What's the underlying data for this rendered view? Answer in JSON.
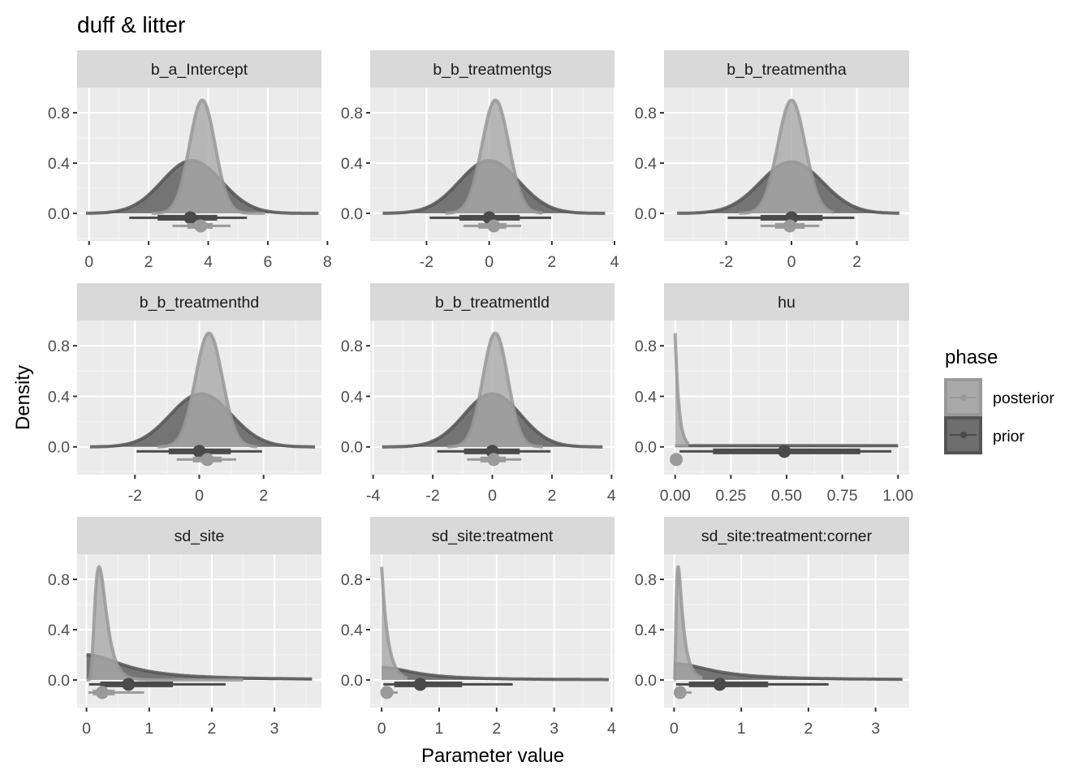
{
  "chart_data": {
    "type": "area",
    "title": "duff & litter",
    "xlabel": "Parameter value",
    "ylabel": "Density",
    "ylim": [
      -0.22,
      1.0
    ],
    "yticks": [
      0.0,
      0.4,
      0.8
    ],
    "ytick_labels": [
      "0.0",
      "0.4",
      "0.8"
    ],
    "grid": true,
    "legend": {
      "title": "phase",
      "placement": "right",
      "entries": [
        {
          "label": "posterior",
          "color": "#a9a9a9",
          "edge": "#999999"
        },
        {
          "label": "prior",
          "color": "#6e6e6e",
          "edge": "#555555"
        }
      ]
    },
    "colors": {
      "posterior_fill": "#a9a9a9",
      "posterior_line": "#999999",
      "prior_fill": "#6e6e6e",
      "prior_line": "#555555",
      "prior_interval": "#4a4a4a",
      "posterior_interval": "#9a9a9a",
      "panel_bg": "#ebebeb",
      "strip_bg": "#d9d9d9"
    },
    "panels": [
      {
        "label": "b_a_Intercept",
        "xlim": [
          -0.4,
          7.8
        ],
        "xticks": [
          0,
          2,
          4,
          6,
          8
        ],
        "xtick_labels": [
          "0",
          "2",
          "4",
          "6",
          "8"
        ],
        "prior": {
          "kind": "normal",
          "mean": 3.45,
          "sd": 1.0,
          "range": [
            -0.1,
            7.7
          ],
          "peak": 0.42
        },
        "posterior": {
          "kind": "normal",
          "mean": 3.8,
          "sd": 0.43,
          "range": [
            2.1,
            5.9
          ],
          "peak": 0.9
        },
        "prior_interval": {
          "point": 3.4,
          "inner": [
            2.3,
            4.3
          ],
          "outer": [
            1.35,
            5.3
          ]
        },
        "posterior_interval": {
          "point": 3.75,
          "inner": [
            3.3,
            4.15
          ],
          "outer": [
            2.8,
            4.75
          ]
        }
      },
      {
        "label": "b_b_treatmentgs",
        "xlim": [
          -3.8,
          4.0
        ],
        "xticks": [
          -2,
          0,
          2,
          4
        ],
        "xtick_labels": [
          "-2",
          "0",
          "2",
          "4"
        ],
        "prior": {
          "kind": "normal",
          "mean": 0.0,
          "sd": 0.95,
          "range": [
            -3.4,
            3.7
          ],
          "peak": 0.42
        },
        "posterior": {
          "kind": "normal",
          "mean": 0.2,
          "sd": 0.43,
          "range": [
            -1.4,
            1.7
          ],
          "peak": 0.9
        },
        "prior_interval": {
          "point": 0.0,
          "inner": [
            -0.95,
            0.98
          ],
          "outer": [
            -1.9,
            1.98
          ]
        },
        "posterior_interval": {
          "point": 0.15,
          "inner": [
            -0.35,
            0.55
          ],
          "outer": [
            -0.82,
            1.02
          ]
        }
      },
      {
        "label": "b_b_treatmentha",
        "xlim": [
          -3.9,
          3.6
        ],
        "xticks": [
          -2,
          0,
          2
        ],
        "xtick_labels": [
          "-2",
          "0",
          "2"
        ],
        "prior": {
          "kind": "normal",
          "mean": 0.0,
          "sd": 0.95,
          "range": [
            -3.5,
            3.3
          ],
          "peak": 0.41
        },
        "posterior": {
          "kind": "normal",
          "mean": 0.0,
          "sd": 0.42,
          "range": [
            -1.6,
            1.3
          ],
          "peak": 0.9
        },
        "prior_interval": {
          "point": 0.0,
          "inner": [
            -0.95,
            0.95
          ],
          "outer": [
            -1.95,
            1.92
          ]
        },
        "posterior_interval": {
          "point": -0.05,
          "inner": [
            -0.5,
            0.4
          ],
          "outer": [
            -0.95,
            0.85
          ]
        }
      },
      {
        "label": "b_b_treatmenthd",
        "xlim": [
          -3.8,
          3.8
        ],
        "xticks": [
          -2,
          0,
          2
        ],
        "xtick_labels": [
          "-2",
          "0",
          "2"
        ],
        "prior": {
          "kind": "normal",
          "mean": 0.05,
          "sd": 0.95,
          "range": [
            -3.4,
            3.6
          ],
          "peak": 0.42
        },
        "posterior": {
          "kind": "normal",
          "mean": 0.3,
          "sd": 0.42,
          "range": [
            -1.3,
            1.8
          ],
          "peak": 0.9
        },
        "prior_interval": {
          "point": 0.0,
          "inner": [
            -0.95,
            0.98
          ],
          "outer": [
            -1.95,
            1.95
          ]
        },
        "posterior_interval": {
          "point": 0.25,
          "inner": [
            -0.2,
            0.7
          ],
          "outer": [
            -0.7,
            1.15
          ]
        }
      },
      {
        "label": "b_b_treatmentld",
        "xlim": [
          -4.1,
          4.1
        ],
        "xticks": [
          -4,
          -2,
          0,
          2,
          4
        ],
        "xtick_labels": [
          "-4",
          "-2",
          "0",
          "2",
          "4"
        ],
        "prior": {
          "kind": "normal",
          "mean": 0.0,
          "sd": 0.95,
          "range": [
            -3.7,
            3.7
          ],
          "peak": 0.42
        },
        "posterior": {
          "kind": "normal",
          "mean": 0.1,
          "sd": 0.42,
          "range": [
            -1.5,
            1.7
          ],
          "peak": 0.9
        },
        "prior_interval": {
          "point": 0.0,
          "inner": [
            -0.95,
            0.92
          ],
          "outer": [
            -1.85,
            1.95
          ]
        },
        "posterior_interval": {
          "point": 0.05,
          "inner": [
            -0.4,
            0.45
          ],
          "outer": [
            -0.85,
            0.97
          ]
        }
      },
      {
        "label": "hu",
        "xlim": [
          -0.05,
          1.05
        ],
        "xticks": [
          0.0,
          0.25,
          0.5,
          0.75,
          1.0
        ],
        "xtick_labels": [
          "0.00",
          "0.25",
          "0.50",
          "0.75",
          "1.00"
        ],
        "prior": {
          "kind": "uniform",
          "range": [
            0.0,
            1.0
          ],
          "peak": 0.01
        },
        "posterior": {
          "kind": "exp",
          "rate": 60,
          "range": [
            0.0,
            0.06
          ],
          "peak": 0.9
        },
        "prior_interval": {
          "point": 0.49,
          "inner": [
            0.17,
            0.83
          ],
          "outer": [
            0.02,
            0.97
          ]
        },
        "posterior_interval": {
          "point": 0.005,
          "inner": [
            0.0,
            0.01
          ],
          "outer": [
            0.0,
            0.02
          ]
        }
      },
      {
        "label": "sd_site",
        "xlim": [
          -0.15,
          3.75
        ],
        "xticks": [
          0,
          1,
          2,
          3
        ],
        "xtick_labels": [
          "0",
          "1",
          "2",
          "3"
        ],
        "prior": {
          "kind": "halft",
          "scale": 0.85,
          "range": [
            0.0,
            3.6
          ],
          "peak": 0.2
        },
        "posterior": {
          "kind": "lognorm",
          "mode": 0.2,
          "sigma": 0.45,
          "range": [
            0.0,
            2.5
          ],
          "peak": 0.9
        },
        "prior_interval": {
          "point": 0.67,
          "inner": [
            0.22,
            1.38
          ],
          "outer": [
            0.04,
            2.22
          ]
        },
        "posterior_interval": {
          "point": 0.25,
          "inner": [
            0.1,
            0.45
          ],
          "outer": [
            0.03,
            0.92
          ]
        }
      },
      {
        "label": "sd_site:treatment",
        "xlim": [
          -0.2,
          4.05
        ],
        "xticks": [
          0,
          1,
          2,
          3,
          4
        ],
        "xtick_labels": [
          "0",
          "1",
          "2",
          "3",
          "4"
        ],
        "prior": {
          "kind": "halft",
          "scale": 0.8,
          "range": [
            0.0,
            3.95
          ],
          "peak": 0.1
        },
        "posterior": {
          "kind": "exp",
          "rate": 9,
          "range": [
            0.0,
            0.45
          ],
          "peak": 0.9
        },
        "prior_interval": {
          "point": 0.67,
          "inner": [
            0.22,
            1.4
          ],
          "outer": [
            0.03,
            2.28
          ]
        },
        "posterior_interval": {
          "point": 0.09,
          "inner": [
            0.02,
            0.2
          ],
          "outer": [
            0.0,
            0.28
          ]
        }
      },
      {
        "label": "sd_site:treatment:corner",
        "xlim": [
          -0.15,
          3.5
        ],
        "xticks": [
          0,
          1,
          2,
          3
        ],
        "xtick_labels": [
          "0",
          "1",
          "2",
          "3"
        ],
        "prior": {
          "kind": "halft",
          "scale": 0.8,
          "range": [
            0.0,
            3.4
          ],
          "peak": 0.13
        },
        "posterior": {
          "kind": "lognorm",
          "mode": 0.06,
          "sigma": 0.7,
          "range": [
            0.0,
            0.42
          ],
          "peak": 0.9
        },
        "prior_interval": {
          "point": 0.68,
          "inner": [
            0.22,
            1.4
          ],
          "outer": [
            0.03,
            2.3
          ]
        },
        "posterior_interval": {
          "point": 0.09,
          "inner": [
            0.02,
            0.18
          ],
          "outer": [
            0.0,
            0.26
          ]
        }
      }
    ]
  }
}
